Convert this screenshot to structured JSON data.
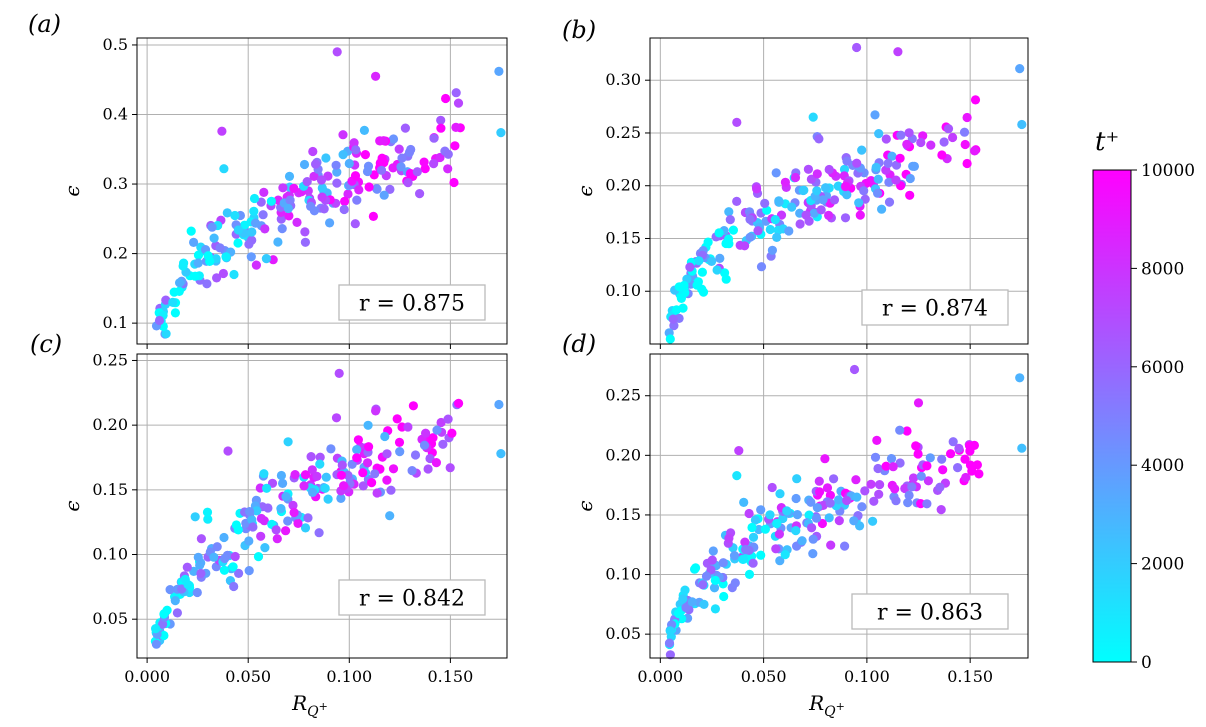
{
  "figure": {
    "colorbar": {
      "title": "t⁺",
      "ticks": [
        "0",
        "2000",
        "4000",
        "6000",
        "8000",
        "10000"
      ],
      "min": 0,
      "max": 10000,
      "color_low": "#00ffff",
      "color_high": "#ff00ff"
    }
  },
  "chart_data": [
    {
      "type": "scatter",
      "panel": "(a)",
      "xlabel": "R_{Q+}",
      "ylabel": "ϵ",
      "xlim": [
        -0.005,
        0.178
      ],
      "ylim": [
        0.07,
        0.51
      ],
      "xticks": [
        0.0,
        0.05,
        0.1,
        0.15
      ],
      "xticklabels": [
        "0.000",
        "0.050",
        "0.100",
        "0.150"
      ],
      "yticks": [
        0.1,
        0.2,
        0.3,
        0.4,
        0.5
      ],
      "yticklabels": [
        "0.1",
        "0.2",
        "0.3",
        "0.4",
        "0.5"
      ],
      "show_xticklabels": false,
      "grid": true,
      "annotation": "r = 0.875",
      "trend": {
        "b": 0.35,
        "ymin": 0.085,
        "scale": 0.73,
        "noise": 0.031
      },
      "outliers": [
        [
          0.094,
          0.49,
          7000
        ],
        [
          0.037,
          0.376,
          7500
        ],
        [
          0.113,
          0.455,
          8500
        ],
        [
          0.174,
          0.462,
          3500
        ],
        [
          0.175,
          0.374,
          2000
        ],
        [
          0.038,
          0.322,
          1500
        ]
      ]
    },
    {
      "type": "scatter",
      "panel": "(b)",
      "xlabel": "R_{Q+}",
      "ylabel": "ϵ",
      "xlim": [
        -0.005,
        0.178
      ],
      "ylim": [
        0.05,
        0.34
      ],
      "xticks": [
        0.0,
        0.05,
        0.1,
        0.15
      ],
      "xticklabels": [
        "0.000",
        "0.050",
        "0.100",
        "0.150"
      ],
      "yticks": [
        0.1,
        0.15,
        0.2,
        0.25,
        0.3
      ],
      "yticklabels": [
        "0.10",
        "0.15",
        "0.20",
        "0.25",
        "0.30"
      ],
      "show_xticklabels": false,
      "grid": true,
      "annotation": "r = 0.874",
      "trend": {
        "b": 0.33,
        "ymin": 0.068,
        "scale": 0.47,
        "noise": 0.02
      },
      "outliers": [
        [
          0.095,
          0.331,
          6500
        ],
        [
          0.037,
          0.26,
          7000
        ],
        [
          0.115,
          0.327,
          7500
        ],
        [
          0.174,
          0.311,
          3500
        ],
        [
          0.175,
          0.258,
          2500
        ],
        [
          0.074,
          0.265,
          1500
        ]
      ]
    },
    {
      "type": "scatter",
      "panel": "(c)",
      "xlabel": "R_{Q+}",
      "ylabel": "ϵ",
      "xlim": [
        -0.005,
        0.178
      ],
      "ylim": [
        0.02,
        0.255
      ],
      "xticks": [
        0.0,
        0.05,
        0.1,
        0.15
      ],
      "xticklabels": [
        "0.000",
        "0.050",
        "0.100",
        "0.150"
      ],
      "yticks": [
        0.05,
        0.1,
        0.15,
        0.2,
        0.25
      ],
      "yticklabels": [
        "0.05",
        "0.10",
        "0.15",
        "0.20",
        "0.25"
      ],
      "show_xticklabels": true,
      "grid": true,
      "annotation": "r = 0.842",
      "trend": {
        "b": 0.36,
        "ymin": 0.032,
        "scale": 0.44,
        "noise": 0.016
      },
      "outliers": [
        [
          0.095,
          0.24,
          7000
        ],
        [
          0.04,
          0.18,
          7000
        ],
        [
          0.113,
          0.211,
          8000
        ],
        [
          0.174,
          0.216,
          3500
        ],
        [
          0.175,
          0.178,
          2500
        ],
        [
          0.12,
          0.13,
          3000
        ]
      ]
    },
    {
      "type": "scatter",
      "panel": "(d)",
      "xlabel": "R_{Q+}",
      "ylabel": "ϵ",
      "xlim": [
        -0.005,
        0.178
      ],
      "ylim": [
        0.03,
        0.285
      ],
      "xticks": [
        0.0,
        0.05,
        0.1,
        0.15
      ],
      "xticklabels": [
        "0.000",
        "0.050",
        "0.100",
        "0.150"
      ],
      "yticks": [
        0.05,
        0.1,
        0.15,
        0.2,
        0.25
      ],
      "yticklabels": [
        "0.05",
        "0.10",
        "0.15",
        "0.20",
        "0.25"
      ],
      "show_xticklabels": true,
      "grid": true,
      "annotation": "r = 0.863",
      "trend": {
        "b": 0.34,
        "ymin": 0.045,
        "scale": 0.41,
        "noise": 0.017
      },
      "outliers": [
        [
          0.094,
          0.272,
          6500
        ],
        [
          0.038,
          0.204,
          7500
        ],
        [
          0.125,
          0.244,
          9000
        ],
        [
          0.174,
          0.265,
          3000
        ],
        [
          0.175,
          0.206,
          2500
        ],
        [
          0.037,
          0.183,
          1000
        ]
      ]
    }
  ]
}
